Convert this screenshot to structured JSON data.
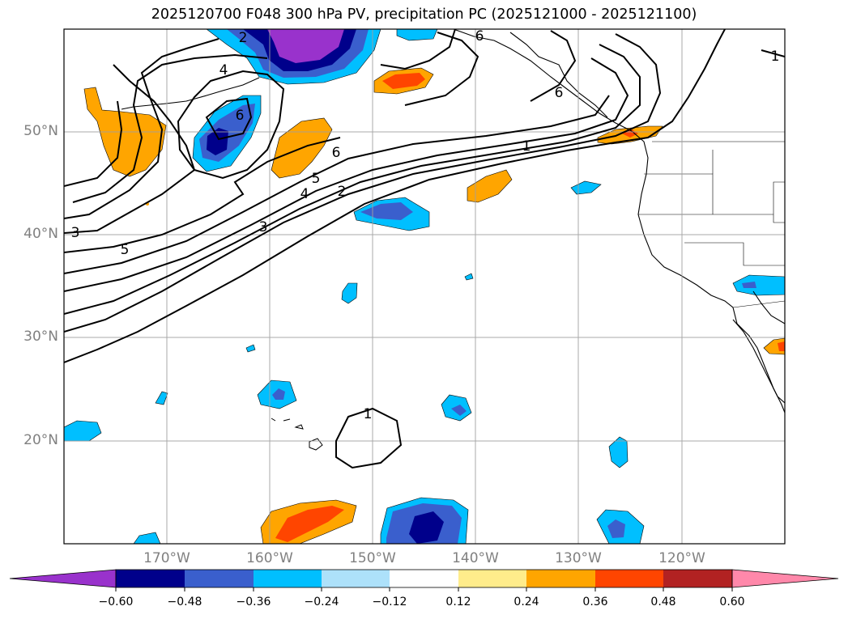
{
  "title": "2025120700 F048 300 hPa PV, precipitation PC (2025121000 - 2025121100)",
  "map": {
    "lat_ticks": [
      {
        "label": "50°N",
        "lat": 50
      },
      {
        "label": "40°N",
        "lat": 40
      },
      {
        "label": "30°N",
        "lat": 30
      },
      {
        "label": "20°N",
        "lat": 20
      }
    ],
    "lon_ticks": [
      {
        "label": "170°W",
        "lon": -170
      },
      {
        "label": "160°W",
        "lon": -160
      },
      {
        "label": "150°W",
        "lon": -150
      },
      {
        "label": "140°W",
        "lon": -140
      },
      {
        "label": "130°W",
        "lon": -130
      },
      {
        "label": "120°W",
        "lon": -120
      }
    ],
    "extent": {
      "lon_min": -180,
      "lon_max": -110,
      "lat_min": 10,
      "lat_max": 60
    },
    "grid": true,
    "contour_labels": [
      "6",
      "4",
      "6",
      "6",
      "5",
      "4",
      "2",
      "3",
      "5",
      "3",
      "1",
      "1",
      "1",
      "2",
      "6"
    ],
    "colors": {
      "neg_060": "#9932CC",
      "neg_048": "#00008B",
      "neg_036": "#3A5FCD",
      "neg_024": "#00BFFF",
      "neg_012": "#ADE1FA",
      "zero": "#FFFFFF",
      "pos_012": "#FFEC8B",
      "pos_024": "#FFA500",
      "pos_036": "#FF4500",
      "pos_048": "#B22222",
      "pos_060": "#FF88AA"
    }
  },
  "colorbar": {
    "labels": [
      "−0.60",
      "−0.48",
      "−0.36",
      "−0.24",
      "−0.12",
      "0.12",
      "0.24",
      "0.36",
      "0.48",
      "0.60"
    ],
    "bins": [
      "#9932CC",
      "#00008B",
      "#3A5FCD",
      "#00BFFF",
      "#ADE1FA",
      "#FFFFFF",
      "#FFEC8B",
      "#FFA500",
      "#FF4500",
      "#B22222",
      "#FF88AA"
    ]
  }
}
